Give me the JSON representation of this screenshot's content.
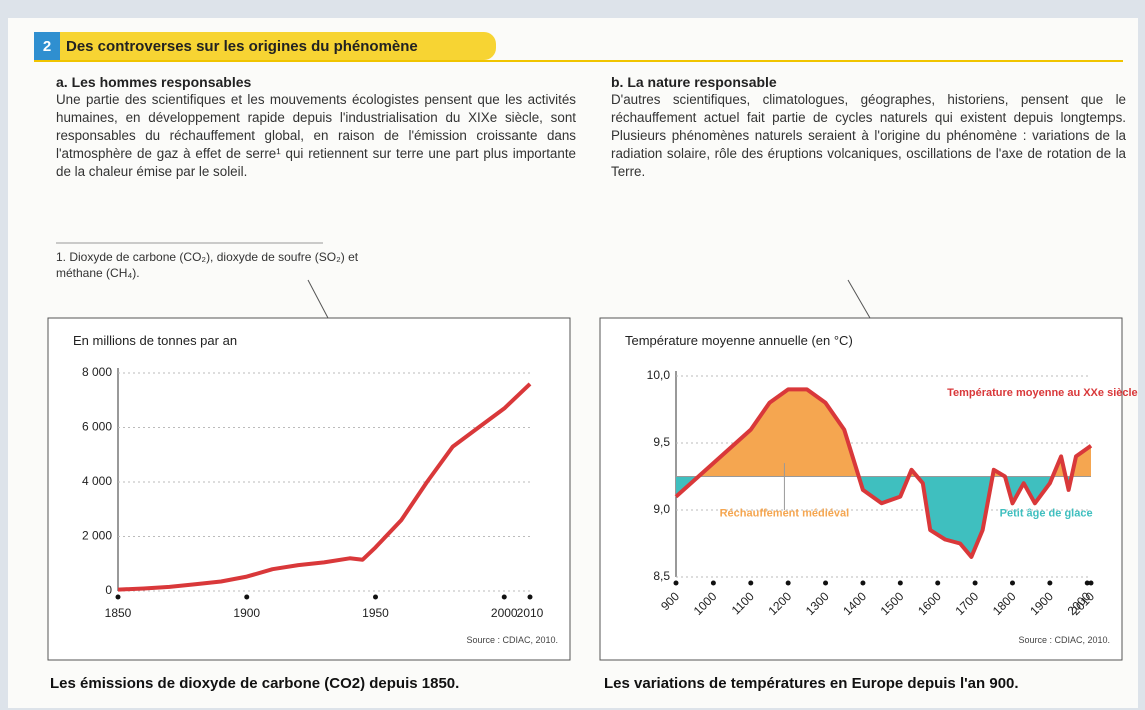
{
  "header": {
    "number": "2",
    "title": "Des controverses sur les origines du phénomène"
  },
  "section_a": {
    "title": "a. Les hommes responsables",
    "text": "Une partie des scientifiques et les mouvements écologistes pensent que les activités humaines, en développement rapide depuis l'industrialisation du XIXe siècle, sont responsables du réchauffement global, en raison de l'émission croissante dans l'atmosphère de gaz à effet de serre¹ qui retiennent sur terre une part plus importante de la chaleur émise par le soleil.",
    "footnote": "1. Dioxyde de carbone (CO₂), dioxyde de soufre (SO₂) et méthane (CH₄)."
  },
  "section_b": {
    "title": "b. La nature responsable",
    "text": "D'autres scientifiques, climatologues, géographes, historiens, pensent que le réchauffement actuel fait partie de cycles naturels qui existent depuis longtemps. Plusieurs phénomènes naturels seraient à l'origine du phénomène : variations de la radiation solaire, rôle des éruptions volcaniques, oscillations de l'axe de rotation de la Terre."
  },
  "chart_data": [
    {
      "type": "line",
      "axis_title": "En millions de tonnes par an",
      "source": "Source : CDIAC, 2010.",
      "caption": "Les émissions de dioxyde de carbone (CO2) depuis 1850.",
      "color": "#d9383a",
      "x": [
        1850,
        1860,
        1870,
        1880,
        1890,
        1900,
        1910,
        1920,
        1930,
        1940,
        1945,
        1950,
        1960,
        1970,
        1980,
        1990,
        2000,
        2010
      ],
      "values": [
        50,
        90,
        150,
        250,
        350,
        530,
        800,
        950,
        1050,
        1200,
        1150,
        1600,
        2600,
        4000,
        5300,
        6000,
        6700,
        7600
      ],
      "xlim": [
        1850,
        2010
      ],
      "xticks": [
        1850,
        1900,
        1950,
        2000,
        2010
      ],
      "ylim": [
        0,
        8000
      ],
      "yticks": [
        0,
        {
          "value": 2000,
          "label": "2 000"
        },
        {
          "value": 4000,
          "label": "4 000"
        },
        {
          "value": 6000,
          "label": "6 000"
        },
        {
          "value": 8000,
          "label": "8 000"
        }
      ],
      "grid": true
    },
    {
      "type": "area",
      "axis_title": "Température moyenne annuelle (en °C)",
      "source": "Source : CDIAC, 2010.",
      "caption": "Les variations de températures en Europe depuis l'an 900.",
      "color": "#d9383a",
      "above_color": "#f5a650",
      "below_color": "#3fbfbf",
      "baseline": 9.25,
      "annotations": [
        "Réchauffement médiéval",
        "Petit âge de glace",
        "Température moyenne au XXe siècle"
      ],
      "x": [
        900,
        1000,
        1100,
        1150,
        1200,
        1250,
        1300,
        1350,
        1400,
        1450,
        1500,
        1530,
        1560,
        1580,
        1620,
        1660,
        1690,
        1720,
        1750,
        1780,
        1800,
        1830,
        1860,
        1900,
        1930,
        1950,
        1970,
        2010
      ],
      "values": [
        9.1,
        9.35,
        9.6,
        9.8,
        9.9,
        9.9,
        9.8,
        9.6,
        9.15,
        9.05,
        9.1,
        9.3,
        9.2,
        8.85,
        8.78,
        8.75,
        8.65,
        8.85,
        9.3,
        9.25,
        9.05,
        9.2,
        9.05,
        9.2,
        9.4,
        9.15,
        9.4,
        9.48
      ],
      "xlim": [
        900,
        2010
      ],
      "xticks": [
        900,
        1000,
        1100,
        1200,
        1300,
        1400,
        1500,
        1600,
        1700,
        1800,
        1900,
        2000,
        2010
      ],
      "ylim": [
        8.5,
        10.0
      ],
      "yticks": [
        {
          "value": 8.5,
          "label": "8,5"
        },
        {
          "value": 9.0,
          "label": "9,0"
        },
        {
          "value": 9.5,
          "label": "9,5"
        },
        {
          "value": 10.0,
          "label": "10,0"
        }
      ],
      "grid": true
    }
  ]
}
